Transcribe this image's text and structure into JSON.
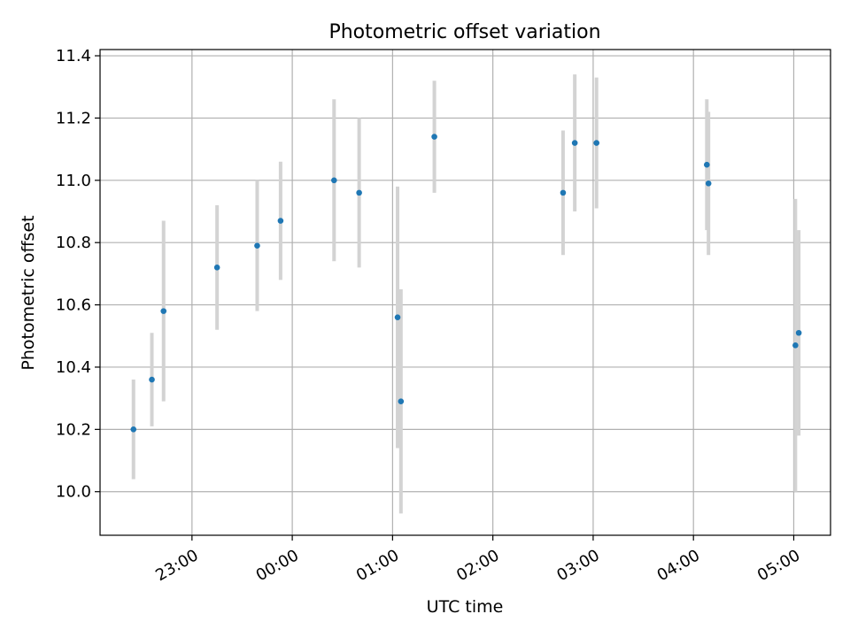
{
  "chart_data": {
    "type": "scatter",
    "title": "Photometric offset variation",
    "xlabel": "UTC time",
    "ylabel": "Photometric offset",
    "x_unit": "UTC time (HH:MM)",
    "xlim": [
      "22:05",
      "05:22"
    ],
    "ylim": [
      9.86,
      11.42
    ],
    "grid": true,
    "x_ticks": [
      "23:00",
      "00:00",
      "01:00",
      "02:00",
      "03:00",
      "04:00",
      "05:00"
    ],
    "y_ticks": [
      "10.0",
      "10.2",
      "10.4",
      "10.6",
      "10.8",
      "11.0",
      "11.2",
      "11.4"
    ],
    "series": [
      {
        "marker_color": "#1f77b4",
        "errorbar_color": "#d3d3d3",
        "points": [
          {
            "x": "22:25",
            "y": 10.2,
            "yerr": 0.16
          },
          {
            "x": "22:36",
            "y": 10.36,
            "yerr": 0.15
          },
          {
            "x": "22:43",
            "y": 10.58,
            "yerr": 0.29
          },
          {
            "x": "23:15",
            "y": 10.72,
            "yerr": 0.2
          },
          {
            "x": "23:39",
            "y": 10.79,
            "yerr": 0.21
          },
          {
            "x": "23:53",
            "y": 10.87,
            "yerr": 0.19
          },
          {
            "x": "00:25",
            "y": 11.0,
            "yerr": 0.26
          },
          {
            "x": "00:40",
            "y": 10.96,
            "yerr": 0.24
          },
          {
            "x": "01:03",
            "y": 10.56,
            "yerr": 0.42
          },
          {
            "x": "01:05",
            "y": 10.29,
            "yerr": 0.36
          },
          {
            "x": "01:25",
            "y": 11.14,
            "yerr": 0.18
          },
          {
            "x": "02:42",
            "y": 10.96,
            "yerr": 0.2
          },
          {
            "x": "02:49",
            "y": 11.12,
            "yerr": 0.22
          },
          {
            "x": "03:02",
            "y": 11.12,
            "yerr": 0.21
          },
          {
            "x": "04:08",
            "y": 11.05,
            "yerr": 0.21
          },
          {
            "x": "04:09",
            "y": 10.99,
            "yerr": 0.23
          },
          {
            "x": "05:01",
            "y": 10.47,
            "yerr": 0.47
          },
          {
            "x": "05:03",
            "y": 10.51,
            "yerr": 0.33
          }
        ]
      }
    ]
  }
}
